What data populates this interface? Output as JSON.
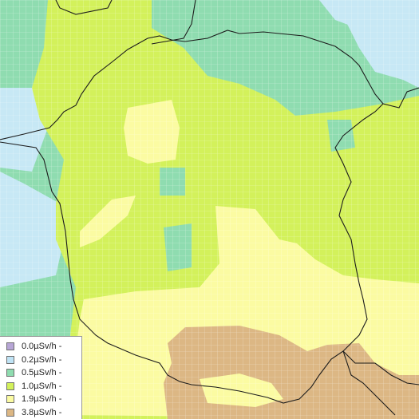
{
  "map": {
    "colors": {
      "sea": "#c7e8f5",
      "grid": "#ffffff",
      "border": "#1c1c1c"
    },
    "legend": {
      "items": [
        {
          "label": "0.0µSv/h -",
          "color": "#b7a6d6"
        },
        {
          "label": "0.2µSv/h -",
          "color": "#bfe3f5"
        },
        {
          "label": "0.5µSv/h -",
          "color": "#8fdcb0"
        },
        {
          "label": "1.0µSv/h -",
          "color": "#d3f15b"
        },
        {
          "label": "1.9µSv/h -",
          "color": "#fbfba2"
        },
        {
          "label": "3.8µSv/h -",
          "color": "#dcb784"
        }
      ]
    }
  }
}
